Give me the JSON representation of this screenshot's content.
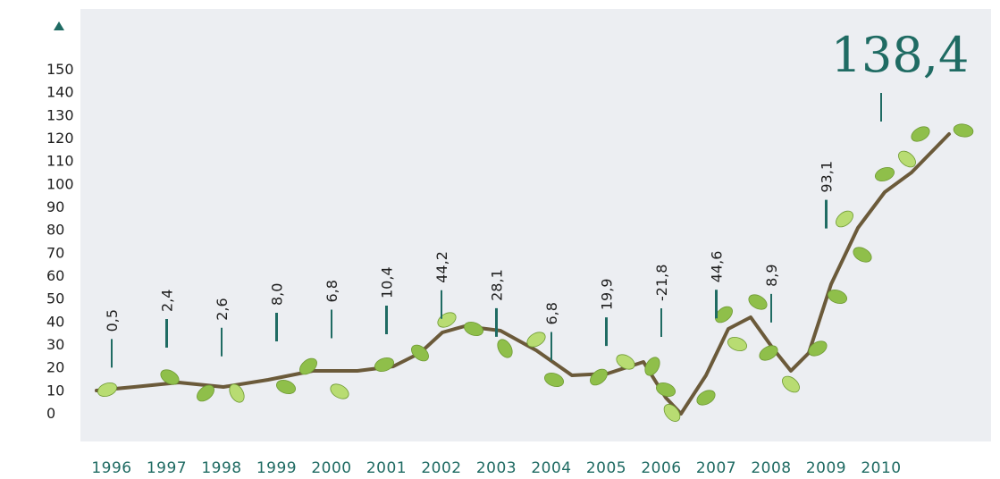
{
  "chart_data": {
    "type": "line",
    "title": "",
    "xlabel": "",
    "ylabel": "",
    "x": [
      "1996",
      "1997",
      "1998",
      "1999",
      "2000",
      "2001",
      "2002",
      "2003",
      "2004",
      "2005",
      "2006",
      "2007",
      "2008",
      "2009",
      "2010"
    ],
    "series": [
      {
        "values": [
          0.5,
          2.4,
          2.6,
          8.0,
          6.8,
          10.4,
          44.2,
          28.1,
          6.8,
          19.9,
          -21.8,
          44.6,
          8.9,
          93.1,
          138.4
        ],
        "labels": [
          "0,5",
          "2,4",
          "2,6",
          "8,0",
          "6,8",
          "10,4",
          "44,2",
          "28,1",
          "6,8",
          "19,9",
          "-21,8",
          "44,6",
          "8,9",
          "93,1",
          "138,4"
        ]
      }
    ],
    "yticks": [
      "0",
      "10",
      "20",
      "30",
      "40",
      "50",
      "60",
      "70",
      "80",
      "90",
      "100",
      "110",
      "120",
      "130",
      "140",
      "150"
    ],
    "ylim": [
      0,
      150
    ],
    "grid": false,
    "legend": "none",
    "colors": {
      "background": "#eceef2",
      "accent": "#1f6b63",
      "branch": "#6b5a3a",
      "leaf": "#8fbf4a",
      "leaf_light": "#b8dc72"
    }
  }
}
